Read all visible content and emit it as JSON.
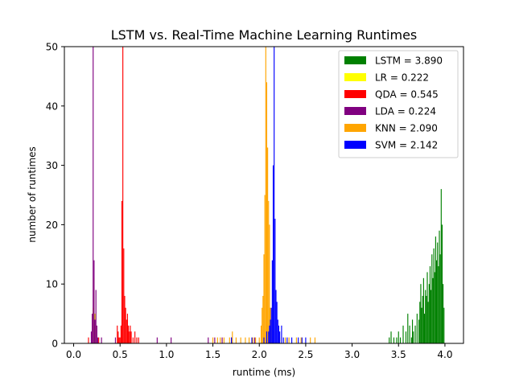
{
  "chart_data": {
    "type": "histogram",
    "title": "LSTM vs. Real-Time Machine Learning Runtimes",
    "xlabel": "runtime (ms)",
    "ylabel": "number of runtimes",
    "xlim": [
      -0.1,
      4.2
    ],
    "ylim": [
      0,
      50
    ],
    "x_ticks": [
      "0.0",
      "0.5",
      "1.0",
      "1.5",
      "2.0",
      "2.5",
      "3.0",
      "3.5",
      "4.0"
    ],
    "y_ticks": [
      "0",
      "10",
      "20",
      "30",
      "40",
      "50"
    ],
    "legend_position": "upper right",
    "bin_width": 0.01,
    "series": [
      {
        "name": "LSTM = 3.890",
        "color": "#008000",
        "bins": [
          [
            3.4,
            1
          ],
          [
            3.42,
            2
          ],
          [
            3.45,
            1
          ],
          [
            3.48,
            1
          ],
          [
            3.5,
            2
          ],
          [
            3.52,
            1
          ],
          [
            3.55,
            3
          ],
          [
            3.58,
            2
          ],
          [
            3.6,
            5
          ],
          [
            3.62,
            3
          ],
          [
            3.64,
            1
          ],
          [
            3.65,
            4
          ],
          [
            3.66,
            2
          ],
          [
            3.68,
            3
          ],
          [
            3.7,
            5
          ],
          [
            3.72,
            4
          ],
          [
            3.73,
            7
          ],
          [
            3.74,
            10
          ],
          [
            3.75,
            6
          ],
          [
            3.76,
            8
          ],
          [
            3.77,
            11
          ],
          [
            3.78,
            5
          ],
          [
            3.79,
            9
          ],
          [
            3.8,
            8
          ],
          [
            3.81,
            12
          ],
          [
            3.82,
            7
          ],
          [
            3.83,
            10
          ],
          [
            3.84,
            13
          ],
          [
            3.85,
            9
          ],
          [
            3.86,
            15
          ],
          [
            3.87,
            11
          ],
          [
            3.88,
            16
          ],
          [
            3.89,
            12
          ],
          [
            3.9,
            18
          ],
          [
            3.91,
            14
          ],
          [
            3.92,
            17
          ],
          [
            3.93,
            13
          ],
          [
            3.94,
            19
          ],
          [
            3.95,
            15
          ],
          [
            3.96,
            26
          ],
          [
            3.97,
            20
          ],
          [
            3.98,
            10
          ],
          [
            3.99,
            6
          ]
        ]
      },
      {
        "name": "LR = 0.222",
        "color": "#ffff00",
        "bins": [
          [
            0.21,
            6
          ],
          [
            0.22,
            11
          ],
          [
            0.23,
            5
          ],
          [
            0.24,
            3
          ]
        ]
      },
      {
        "name": "QDA = 0.545",
        "color": "#ff0000",
        "bins": [
          [
            0.16,
            1
          ],
          [
            0.27,
            1
          ],
          [
            0.47,
            3
          ],
          [
            0.48,
            2
          ],
          [
            0.49,
            1
          ],
          [
            0.5,
            1
          ],
          [
            0.51,
            3
          ],
          [
            0.52,
            24
          ],
          [
            0.53,
            50
          ],
          [
            0.54,
            16
          ],
          [
            0.55,
            8
          ],
          [
            0.56,
            6
          ],
          [
            0.57,
            4
          ],
          [
            0.58,
            5
          ],
          [
            0.59,
            3
          ],
          [
            0.6,
            2
          ],
          [
            0.61,
            3
          ],
          [
            0.62,
            2
          ],
          [
            0.64,
            1
          ],
          [
            0.66,
            2
          ],
          [
            0.68,
            1
          ],
          [
            0.7,
            1
          ]
        ]
      },
      {
        "name": "LDA = 0.224",
        "color": "#800080",
        "bins": [
          [
            0.19,
            2
          ],
          [
            0.2,
            5
          ],
          [
            0.21,
            50
          ],
          [
            0.22,
            14
          ],
          [
            0.23,
            4
          ],
          [
            0.24,
            9
          ],
          [
            0.25,
            3
          ],
          [
            0.26,
            1
          ],
          [
            0.3,
            1
          ],
          [
            0.45,
            1
          ],
          [
            0.9,
            1
          ],
          [
            1.05,
            1
          ],
          [
            1.45,
            1
          ],
          [
            1.52,
            1
          ],
          [
            1.6,
            1
          ],
          [
            1.7,
            1
          ],
          [
            1.95,
            1
          ]
        ]
      },
      {
        "name": "KNN = 2.090",
        "color": "#ffa500",
        "bins": [
          [
            1.5,
            1
          ],
          [
            1.55,
            1
          ],
          [
            1.58,
            1
          ],
          [
            1.62,
            1
          ],
          [
            1.68,
            1
          ],
          [
            1.71,
            2
          ],
          [
            1.75,
            1
          ],
          [
            1.8,
            1
          ],
          [
            1.85,
            1
          ],
          [
            1.89,
            1
          ],
          [
            1.93,
            1
          ],
          [
            1.96,
            1
          ],
          [
            2.0,
            1
          ],
          [
            2.02,
            3
          ],
          [
            2.03,
            6
          ],
          [
            2.04,
            8
          ],
          [
            2.05,
            15
          ],
          [
            2.06,
            25
          ],
          [
            2.07,
            50
          ],
          [
            2.08,
            44
          ],
          [
            2.09,
            33
          ],
          [
            2.1,
            24
          ],
          [
            2.11,
            20
          ],
          [
            2.12,
            6
          ],
          [
            2.13,
            4
          ],
          [
            2.15,
            2
          ],
          [
            2.18,
            2
          ],
          [
            2.22,
            1
          ],
          [
            2.28,
            1
          ],
          [
            2.32,
            1
          ],
          [
            2.4,
            1
          ],
          [
            2.45,
            1
          ],
          [
            2.55,
            1
          ],
          [
            2.6,
            1
          ]
        ]
      },
      {
        "name": "SVM = 2.142",
        "color": "#0000ff",
        "bins": [
          [
            1.7,
            1
          ],
          [
            1.92,
            1
          ],
          [
            2.05,
            1
          ],
          [
            2.08,
            2
          ],
          [
            2.1,
            2
          ],
          [
            2.11,
            3
          ],
          [
            2.12,
            4
          ],
          [
            2.13,
            6
          ],
          [
            2.14,
            14
          ],
          [
            2.15,
            30
          ],
          [
            2.16,
            50
          ],
          [
            2.17,
            21
          ],
          [
            2.18,
            9
          ],
          [
            2.19,
            7
          ],
          [
            2.2,
            4
          ],
          [
            2.21,
            3
          ],
          [
            2.22,
            2
          ],
          [
            2.24,
            3
          ],
          [
            2.26,
            1
          ],
          [
            2.3,
            1
          ],
          [
            2.35,
            1
          ],
          [
            2.42,
            1
          ],
          [
            2.46,
            1
          ],
          [
            2.5,
            1
          ]
        ]
      }
    ]
  }
}
